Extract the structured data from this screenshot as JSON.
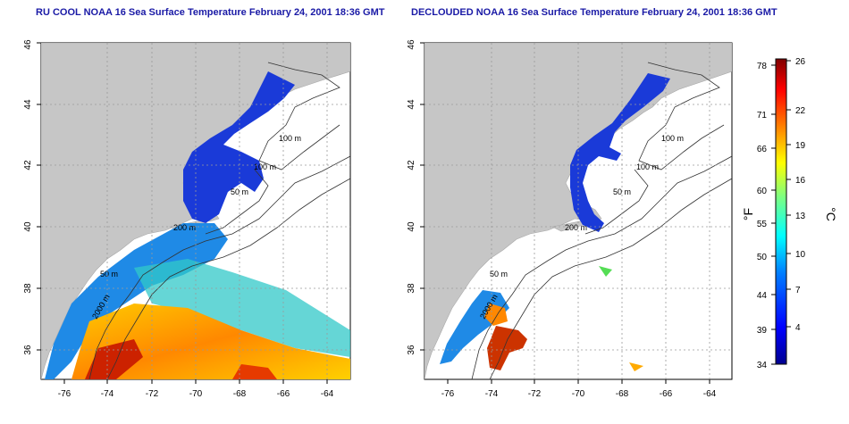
{
  "left_panel": {
    "title": "RU COOL NOAA 16 Sea Surface Temperature February 24, 2001 18:36 GMT",
    "x_ticks": [
      "-76",
      "-74",
      "-72",
      "-70",
      "-68",
      "-66",
      "-64"
    ],
    "y_ticks": [
      "36",
      "38",
      "40",
      "42",
      "44",
      "46"
    ],
    "isobath_labels": [
      "100 m",
      "100 m",
      "50 m",
      "200 m",
      "50 m",
      "2000 m"
    ]
  },
  "right_panel": {
    "title": "DECLOUDED NOAA 16 Sea Surface Temperature February 24, 2001 18:36 GMT",
    "x_ticks": [
      "-76",
      "-74",
      "-72",
      "-70",
      "-68",
      "-66",
      "-64"
    ],
    "y_ticks": [
      "36",
      "38",
      "40",
      "42",
      "44",
      "46"
    ],
    "isobath_labels": [
      "100 m",
      "100 m",
      "50 m",
      "200 m",
      "50 m",
      "2000 m"
    ]
  },
  "colorbar": {
    "fahrenheit_unit": "°F",
    "celsius_unit": "°C",
    "fahrenheit_ticks": [
      "78",
      "71",
      "66",
      "60",
      "55",
      "50",
      "44",
      "39",
      "34"
    ],
    "celsius_ticks": [
      "26",
      "22",
      "19",
      "16",
      "13",
      "10",
      "7",
      "4"
    ],
    "colors": [
      "#00008f",
      "#0000ff",
      "#007fff",
      "#00ffff",
      "#7fff7f",
      "#ffff00",
      "#ff7f00",
      "#ff0000",
      "#7f0000"
    ]
  },
  "map": {
    "extent": {
      "lon": [
        -77,
        -63
      ],
      "lat": [
        35,
        46
      ]
    },
    "land_color": "#c6c6c6",
    "grid": "dotted"
  }
}
